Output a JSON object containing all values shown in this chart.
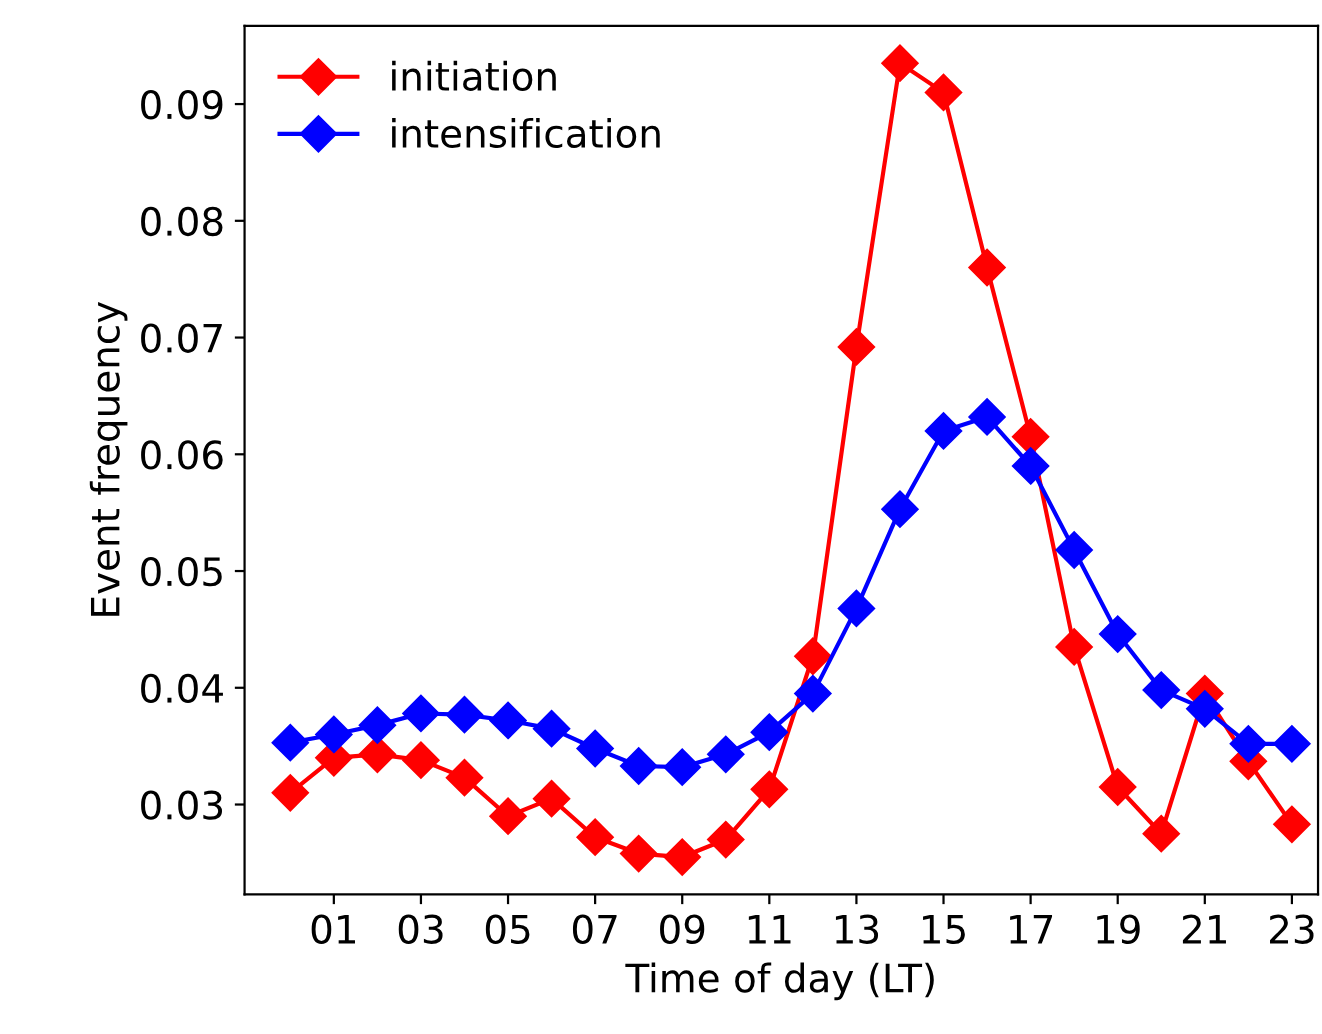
{
  "chart_data": {
    "type": "line",
    "xlabel": "Time of day (LT)",
    "ylabel": "Event frequency",
    "x": [
      0,
      1,
      2,
      3,
      4,
      5,
      6,
      7,
      8,
      9,
      10,
      11,
      12,
      13,
      14,
      15,
      16,
      17,
      18,
      19,
      20,
      21,
      22,
      23
    ],
    "series": [
      {
        "name": "initiation",
        "color": "#ff0000",
        "values": [
          0.031,
          0.034,
          0.0343,
          0.0338,
          0.0323,
          0.029,
          0.0305,
          0.0272,
          0.0258,
          0.0255,
          0.027,
          0.0313,
          0.0427,
          0.0692,
          0.0935,
          0.091,
          0.076,
          0.0615,
          0.0435,
          0.0315,
          0.0275,
          0.0395,
          0.0337,
          0.0283
        ]
      },
      {
        "name": "intensification",
        "color": "#0000ff",
        "values": [
          0.0353,
          0.036,
          0.0368,
          0.0378,
          0.0377,
          0.0372,
          0.0365,
          0.0348,
          0.0333,
          0.0332,
          0.0343,
          0.0362,
          0.0395,
          0.0468,
          0.0553,
          0.062,
          0.0632,
          0.059,
          0.0518,
          0.0446,
          0.0398,
          0.0382,
          0.0352,
          0.0352
        ]
      }
    ],
    "xlim": [
      -1.05,
      23.6
    ],
    "ylim": [
      0.0223,
      0.0967
    ],
    "xticks": [
      {
        "value": 1,
        "label": "01"
      },
      {
        "value": 3,
        "label": "03"
      },
      {
        "value": 5,
        "label": "05"
      },
      {
        "value": 7,
        "label": "07"
      },
      {
        "value": 9,
        "label": "09"
      },
      {
        "value": 11,
        "label": "11"
      },
      {
        "value": 13,
        "label": "13"
      },
      {
        "value": 15,
        "label": "15"
      },
      {
        "value": 17,
        "label": "17"
      },
      {
        "value": 19,
        "label": "19"
      },
      {
        "value": 21,
        "label": "21"
      },
      {
        "value": 23,
        "label": "23"
      }
    ],
    "yticks": [
      0.03,
      0.04,
      0.05,
      0.06,
      0.07,
      0.08,
      0.09
    ],
    "grid": false,
    "legend": "top left",
    "marker": "diamond",
    "line_style": "solid"
  }
}
